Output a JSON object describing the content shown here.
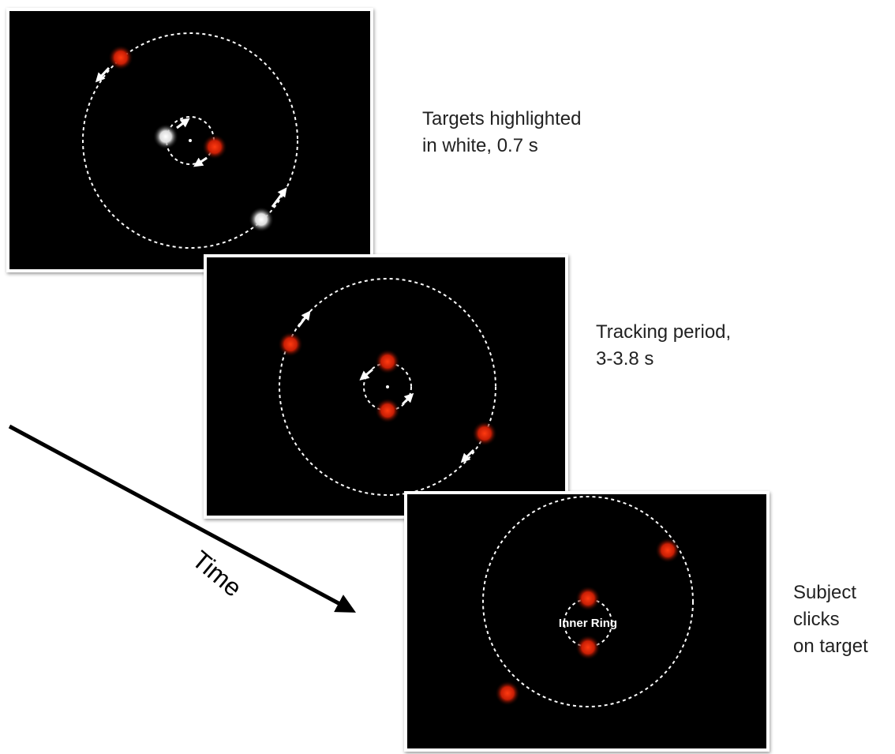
{
  "panels": [
    {
      "caption": [
        "Targets highlighted",
        "in white, 0.7 s"
      ]
    },
    {
      "caption": [
        "Tracking period,",
        "3-3.8 s"
      ]
    },
    {
      "caption": [
        "Subject",
        "clicks",
        "on target"
      ]
    }
  ],
  "inner_ring_label": "Inner Ring",
  "time_label": "Time"
}
